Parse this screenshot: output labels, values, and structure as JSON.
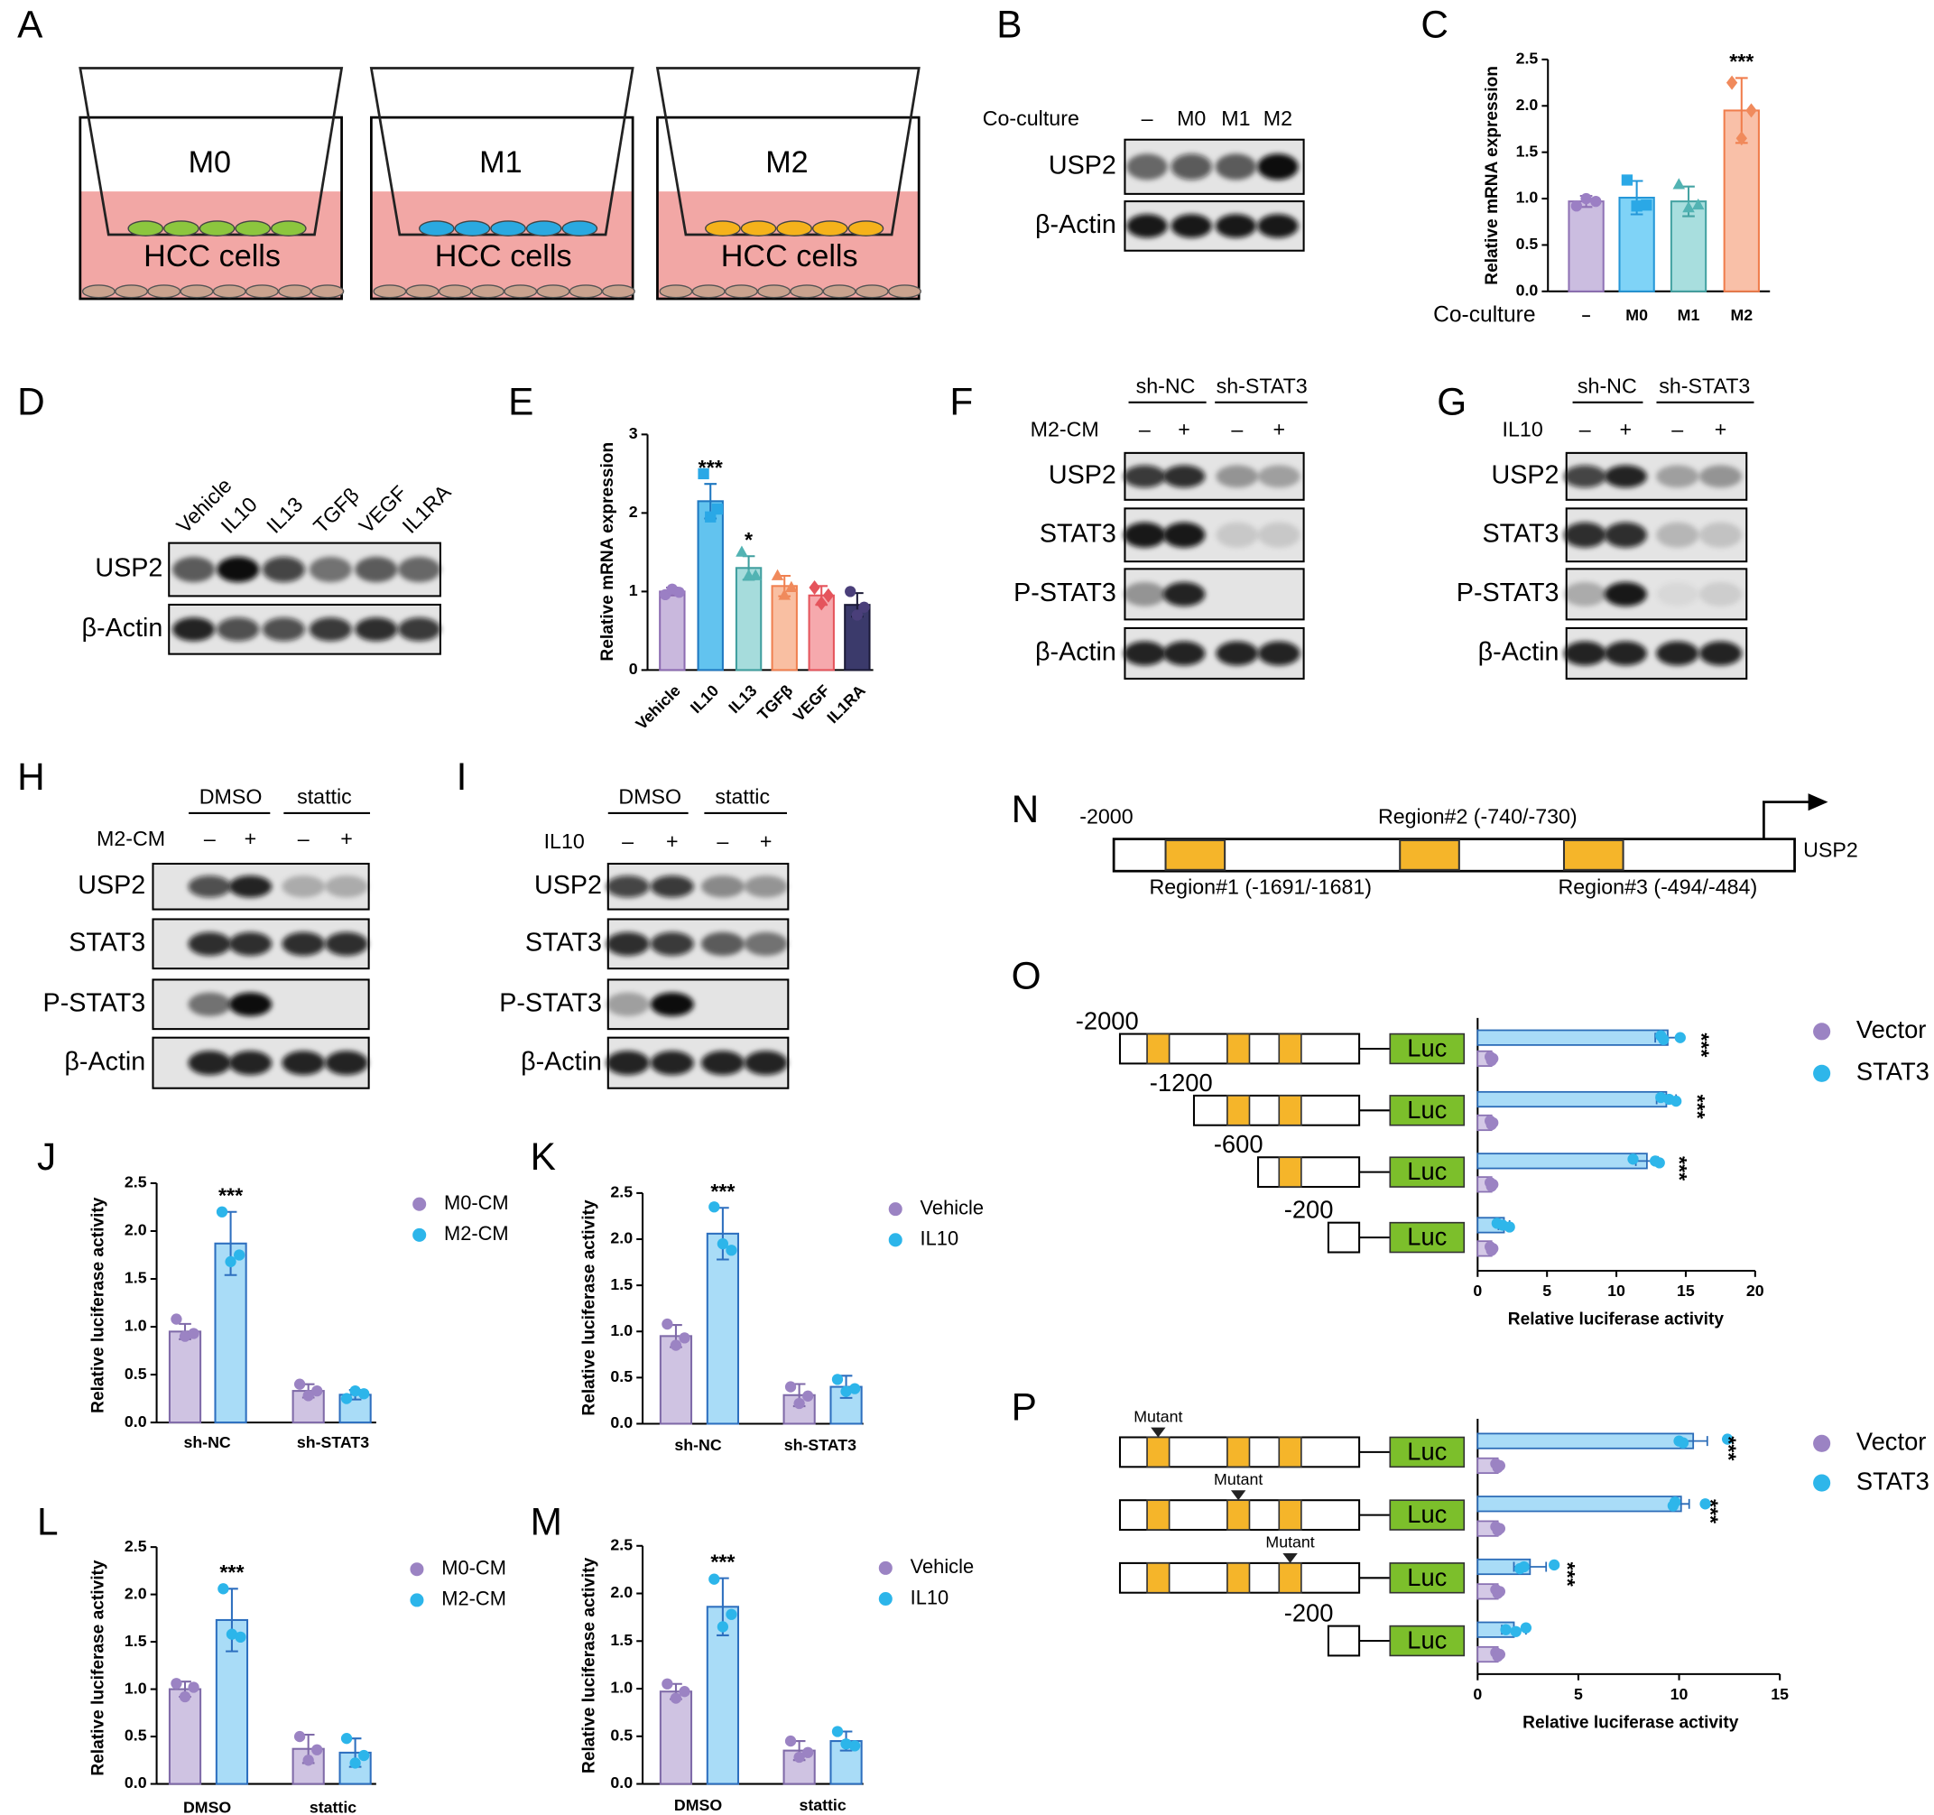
{
  "panel_labels": [
    "A",
    "B",
    "C",
    "D",
    "E",
    "F",
    "G",
    "H",
    "I",
    "J",
    "K",
    "L",
    "M",
    "N",
    "O",
    "P"
  ],
  "schematic": {
    "wells": [
      {
        "label": "M0",
        "cells": "HCC cells"
      },
      {
        "label": "M1",
        "cells": "HCC cells"
      },
      {
        "label": "M2",
        "cells": "HCC cells"
      }
    ]
  },
  "blots": {
    "B": {
      "header_label": "Co-culture",
      "lanes": [
        "–",
        "M0",
        "M1",
        "M2"
      ],
      "rows": [
        "USP2",
        "β-Actin"
      ]
    },
    "D": {
      "lanes": [
        "Vehicle",
        "IL10",
        "IL13",
        "TGFβ",
        "VEGF",
        "IL1RA"
      ],
      "rows": [
        "USP2",
        "β-Actin"
      ]
    },
    "F": {
      "groups": [
        "sh-NC",
        "sh-STAT3"
      ],
      "treatment": "M2-CM",
      "lanes": [
        "–",
        "+",
        "–",
        "+"
      ],
      "rows": [
        "USP2",
        "STAT3",
        "P-STAT3",
        "β-Actin"
      ]
    },
    "G": {
      "groups": [
        "sh-NC",
        "sh-STAT3"
      ],
      "treatment": "IL10",
      "lanes": [
        "–",
        "+",
        "–",
        "+"
      ],
      "rows": [
        "USP2",
        "STAT3",
        "P-STAT3",
        "β-Actin"
      ]
    },
    "H": {
      "groups": [
        "DMSO",
        "stattic"
      ],
      "treatment": "M2-CM",
      "lanes": [
        "–",
        "+",
        "–",
        "+"
      ],
      "rows": [
        "USP2",
        "STAT3",
        "P-STAT3",
        "β-Actin"
      ]
    },
    "I": {
      "groups": [
        "DMSO",
        "stattic"
      ],
      "treatment": "IL10",
      "lanes": [
        "–",
        "+",
        "–",
        "+"
      ],
      "rows": [
        "USP2",
        "STAT3",
        "P-STAT3",
        "β-Actin"
      ]
    }
  },
  "promoter": {
    "start": "-2000",
    "gene": "USP2",
    "regions": [
      "Region#1 (-1691/-1681)",
      "Region#2 (-740/-730)",
      "Region#3 (-494/-484)"
    ]
  },
  "chart_data": [
    {
      "type": "bar",
      "ylabel": "Relative mRNA expression",
      "xlabel": "Co-culture",
      "categories": [
        "–",
        "M0",
        "M1",
        "M2"
      ],
      "values": [
        0.97,
        1.01,
        0.97,
        1.95
      ],
      "errors": [
        0.06,
        0.18,
        0.16,
        0.35
      ],
      "points": [
        [
          0.92,
          1.0,
          0.97
        ],
        [
          1.2,
          0.92,
          0.93
        ],
        [
          1.15,
          0.9,
          0.93
        ],
        [
          2.25,
          1.65,
          1.95
        ]
      ],
      "markers": [
        "circle",
        "square",
        "triangle",
        "diamond"
      ],
      "colors": [
        "#cbbde0",
        "#7fd3f7",
        "#a8dede",
        "#f9c0a8"
      ],
      "edge_colors": [
        "#8f72b5",
        "#2597d8",
        "#45a3a3",
        "#f07d4c"
      ],
      "point_colors": [
        "#9b7fc4",
        "#2aa8e6",
        "#52b3b3",
        "#f08a5c"
      ],
      "annotations": [
        null,
        null,
        null,
        "***"
      ],
      "ylim": [
        0,
        2.5
      ],
      "yticks": [
        {
          "value": 0,
          "label": "0.0"
        },
        0.5,
        {
          "value": 1,
          "label": "1.0"
        },
        1.5,
        {
          "value": 2,
          "label": "2.0"
        },
        2.5
      ]
    },
    {
      "type": "bar",
      "ylabel": "Relative mRNA expression",
      "categories": [
        "Vehicle",
        "IL10",
        "IL13",
        "TGFβ",
        "VEGF",
        "IL1RA"
      ],
      "values": [
        1.0,
        2.15,
        1.3,
        1.07,
        0.95,
        0.83
      ],
      "errors": [
        0.05,
        0.22,
        0.15,
        0.13,
        0.12,
        0.15
      ],
      "points": [
        [
          0.96,
          1.03,
          0.99
        ],
        [
          2.5,
          1.95,
          2.05
        ],
        [
          1.5,
          1.2,
          1.2
        ],
        [
          1.2,
          0.95,
          1.05
        ],
        [
          1.05,
          0.85,
          0.95
        ],
        [
          1.0,
          0.7,
          0.8
        ]
      ],
      "markers": [
        "circle",
        "square",
        "triangle",
        "triangle",
        "diamond",
        "circle"
      ],
      "colors": [
        "#c9b8dd",
        "#62c3ef",
        "#a6dcdc",
        "#f9bfa2",
        "#f6a9ad",
        "#3b3a6b"
      ],
      "edge_colors": [
        "#8c6bb1",
        "#1f78c1",
        "#3f9e9e",
        "#f08050",
        "#e5545c",
        "#1c1b38"
      ],
      "point_colors": [
        "#9b7fc4",
        "#2aa8e6",
        "#52b3b3",
        "#f08a5c",
        "#e5545c",
        "#4a3f7a"
      ],
      "annotations": [
        null,
        "***",
        "*",
        null,
        null,
        null
      ],
      "ylim": [
        0,
        3
      ],
      "yticks": [
        0,
        1,
        2,
        3
      ]
    },
    {
      "type": "bar",
      "ylabel": "Relative luciferase activity",
      "categories": [
        "sh-NC",
        "sh-STAT3"
      ],
      "series": [
        {
          "name": "M0-CM",
          "color": "#cfc3e2",
          "edge_color": "#7f6aa8",
          "point_color": "#9b83c3",
          "values": [
            0.95,
            0.33
          ],
          "errors": [
            0.08,
            0.07
          ],
          "points": [
            [
              1.08,
              0.9,
              0.93
            ],
            [
              0.4,
              0.28,
              0.33
            ]
          ]
        },
        {
          "name": "M2-CM",
          "color": "#a9dcf7",
          "edge_color": "#2d6fbf",
          "point_color": "#2cb5ea",
          "values": [
            1.87,
            0.29
          ],
          "errors": [
            0.33,
            0.05
          ],
          "points": [
            [
              2.2,
              1.68,
              1.75
            ],
            [
              0.25,
              0.33,
              0.3
            ]
          ],
          "annotations": [
            "***",
            null
          ]
        }
      ],
      "ylim": [
        0,
        2.5
      ],
      "yticks": [
        {
          "value": 0,
          "label": "0.0"
        },
        0.5,
        {
          "value": 1,
          "label": "1.0"
        },
        1.5,
        {
          "value": 2,
          "label": "2.0"
        },
        2.5
      ]
    },
    {
      "type": "bar",
      "ylabel": "Relative luciferase activity",
      "categories": [
        "sh-NC",
        "sh-STAT3"
      ],
      "series": [
        {
          "name": "Vehicle",
          "color": "#cfc3e2",
          "edge_color": "#7f6aa8",
          "point_color": "#9b83c3",
          "values": [
            0.95,
            0.31
          ],
          "errors": [
            0.12,
            0.12
          ],
          "points": [
            [
              1.08,
              0.85,
              0.93
            ],
            [
              0.4,
              0.22,
              0.3
            ]
          ]
        },
        {
          "name": "IL10",
          "color": "#a9dcf7",
          "edge_color": "#2d6fbf",
          "point_color": "#2cb5ea",
          "values": [
            2.06,
            0.4
          ],
          "errors": [
            0.28,
            0.12
          ],
          "points": [
            [
              2.35,
              1.95,
              1.88
            ],
            [
              0.48,
              0.35,
              0.38
            ]
          ],
          "annotations": [
            "***",
            null
          ]
        }
      ],
      "ylim": [
        0,
        2.5
      ],
      "yticks": [
        {
          "value": 0,
          "label": "0.0"
        },
        0.5,
        {
          "value": 1,
          "label": "1.0"
        },
        1.5,
        {
          "value": 2,
          "label": "2.0"
        },
        2.5
      ]
    },
    {
      "type": "bar",
      "ylabel": "Relative luciferase activity",
      "categories": [
        "DMSO",
        "stattic"
      ],
      "series": [
        {
          "name": "M0-CM",
          "color": "#cfc3e2",
          "edge_color": "#7f6aa8",
          "point_color": "#9b83c3",
          "values": [
            1.0,
            0.37
          ],
          "errors": [
            0.08,
            0.15
          ],
          "points": [
            [
              1.06,
              0.92,
              1.02
            ],
            [
              0.5,
              0.25,
              0.36
            ]
          ]
        },
        {
          "name": "M2-CM",
          "color": "#a9dcf7",
          "edge_color": "#2d6fbf",
          "point_color": "#2cb5ea",
          "values": [
            1.73,
            0.33
          ],
          "errors": [
            0.33,
            0.15
          ],
          "points": [
            [
              2.06,
              1.58,
              1.55
            ],
            [
              0.48,
              0.22,
              0.3
            ]
          ],
          "annotations": [
            "***",
            null
          ]
        }
      ],
      "ylim": [
        0,
        2.5
      ],
      "yticks": [
        {
          "value": 0,
          "label": "0.0"
        },
        0.5,
        {
          "value": 1,
          "label": "1.0"
        },
        1.5,
        {
          "value": 2,
          "label": "2.0"
        },
        2.5
      ]
    },
    {
      "type": "bar",
      "ylabel": "Relative luciferase activity",
      "categories": [
        "DMSO",
        "stattic"
      ],
      "series": [
        {
          "name": "Vehicle",
          "color": "#cfc3e2",
          "edge_color": "#7f6aa8",
          "point_color": "#9b83c3",
          "values": [
            0.97,
            0.35
          ],
          "errors": [
            0.08,
            0.1
          ],
          "points": [
            [
              1.05,
              0.9,
              0.97
            ],
            [
              0.45,
              0.28,
              0.33
            ]
          ]
        },
        {
          "name": "IL10",
          "color": "#a9dcf7",
          "edge_color": "#2d6fbf",
          "point_color": "#2cb5ea",
          "values": [
            1.86,
            0.45
          ],
          "errors": [
            0.3,
            0.1
          ],
          "points": [
            [
              2.15,
              1.65,
              1.78
            ],
            [
              0.55,
              0.42,
              0.4
            ]
          ],
          "annotations": [
            "***",
            null
          ]
        }
      ],
      "ylim": [
        0,
        2.5
      ],
      "yticks": [
        {
          "value": 0,
          "label": "0.0"
        },
        0.5,
        {
          "value": 1,
          "label": "1.0"
        },
        1.5,
        {
          "value": 2,
          "label": "2.0"
        },
        2.5
      ]
    },
    {
      "type": "hbar",
      "xlabel": "Relative luciferase activity",
      "reporter": "Luc",
      "categories": [
        "-2000",
        "-1200",
        "-600",
        "-200"
      ],
      "series": [
        {
          "name": "Vector",
          "color": "#d4c9e6",
          "edge_color": "#8a72b3",
          "point_color": "#9b83c3",
          "values": [
            1.0,
            1.0,
            1.0,
            1.0
          ],
          "errors": [
            0.1,
            0.1,
            0.1,
            0.1
          ],
          "points": [
            [
              0.9,
              1.1,
              1.0
            ],
            [
              0.9,
              1.1,
              1.0
            ],
            [
              0.9,
              1.1,
              1.0
            ],
            [
              0.9,
              1.1,
              1.0
            ]
          ]
        },
        {
          "name": "STAT3",
          "color": "#a9dcf7",
          "edge_color": "#2b6cb8",
          "point_color": "#2eb6ea",
          "values": [
            13.7,
            13.6,
            12.2,
            1.9
          ],
          "errors": [
            0.9,
            0.7,
            0.8,
            0.4
          ],
          "points": [
            [
              13.2,
              14.6,
              13.4
            ],
            [
              13.2,
              13.8,
              14.3
            ],
            [
              11.2,
              12.8,
              13.1
            ],
            [
              1.4,
              1.8,
              2.3
            ]
          ],
          "annotations": [
            "***",
            "***",
            "***",
            null
          ]
        }
      ],
      "xlim": [
        0,
        20
      ],
      "xticks": [
        0,
        5,
        10,
        15,
        20
      ]
    },
    {
      "type": "hbar",
      "xlabel": "Relative luciferase activity",
      "reporter": "Luc",
      "categories": [
        "Mutant",
        "Mutant",
        "Mutant",
        "-200"
      ],
      "series": [
        {
          "name": "Vector",
          "color": "#d4c9e6",
          "edge_color": "#8a72b3",
          "point_color": "#9b83c3",
          "values": [
            1.0,
            1.0,
            1.0,
            1.0
          ],
          "errors": [
            0.1,
            0.1,
            0.1,
            0.1
          ],
          "points": [
            [
              0.9,
              1.1,
              1.0
            ],
            [
              0.9,
              1.1,
              1.0
            ],
            [
              0.9,
              1.1,
              1.0
            ],
            [
              0.9,
              1.1,
              1.0
            ]
          ]
        },
        {
          "name": "STAT3",
          "color": "#a9dcf7",
          "edge_color": "#2b6cb8",
          "point_color": "#2eb6ea",
          "values": [
            10.7,
            10.1,
            2.6,
            1.8
          ],
          "errors": [
            0.7,
            0.4,
            0.8,
            0.6
          ],
          "points": [
            [
              12.4,
              10.0,
              10.2
            ],
            [
              9.8,
              11.3,
              9.7
            ],
            [
              3.8,
              2.3,
              2.1
            ],
            [
              2.4,
              1.4,
              1.9
            ]
          ],
          "annotations": [
            "***",
            "***",
            "***",
            null
          ]
        }
      ],
      "xlim": [
        0,
        15
      ],
      "xticks": [
        0,
        5,
        10,
        15
      ]
    }
  ]
}
